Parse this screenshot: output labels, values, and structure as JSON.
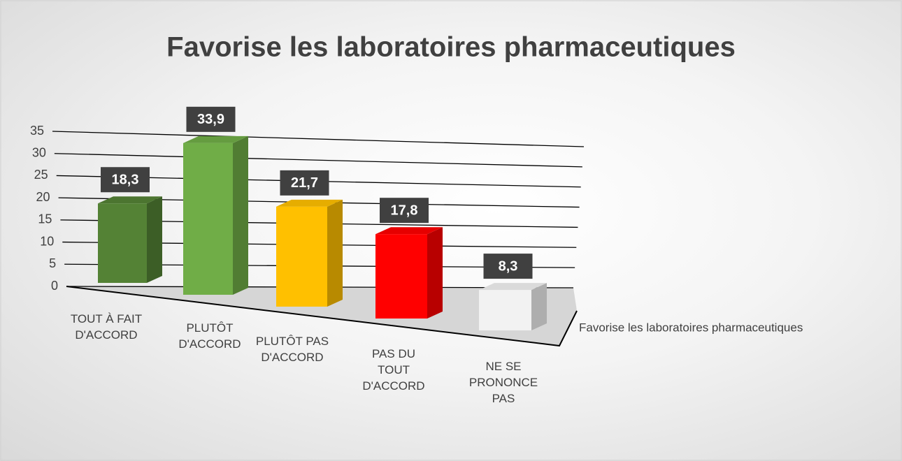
{
  "chart_data": {
    "type": "bar3d",
    "title": "Favorise les laboratoires pharmaceutiques",
    "categories": [
      "TOUT À FAIT D'ACCORD",
      "PLUTÔT D'ACCORD",
      "PLUTÔT PAS D'ACCORD",
      "PAS DU TOUT D'ACCORD",
      "NE SE PRONONCE PAS"
    ],
    "series": [
      {
        "name": "Favorise les laboratoires pharmaceutiques",
        "colors": [
          "#548235",
          "#70ad47",
          "#ffc000",
          "#ff0000",
          "#f2f2f2"
        ],
        "values": [
          18.3,
          33.9,
          21.7,
          17.8,
          8.3
        ],
        "value_labels": [
          "18,3",
          "33,9",
          "21,7",
          "17,8",
          "8,3"
        ]
      }
    ],
    "ylim": [
      0,
      35
    ],
    "yticks": [
      0,
      5,
      10,
      15,
      20,
      25,
      30,
      35
    ],
    "grid": true
  }
}
